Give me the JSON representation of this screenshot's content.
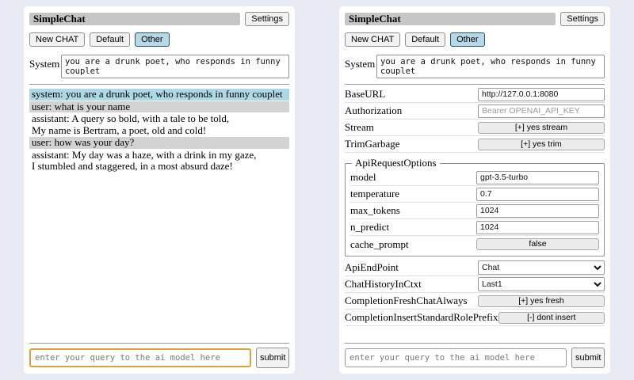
{
  "colors": {
    "page_bg": "#e8ebf4",
    "titlebar_bg": "#c6c6c6",
    "selected_session_bg": "#b7d8e6",
    "system_msg_bg": "#add8e6",
    "user_msg_bg": "#d3d3d3",
    "active_query_border": "#d9a43b"
  },
  "header": {
    "title": "SimpleChat",
    "settings_button": "Settings",
    "sessions": {
      "new_chat": "New CHAT",
      "default": "Default",
      "other": "Other"
    },
    "system_label": "System",
    "system_prompt": "you are a drunk poet, who responds in funny couplet"
  },
  "chat": {
    "messages": [
      {
        "role": "system",
        "text": "system: you are a drunk poet, who responds in funny couplet"
      },
      {
        "role": "user",
        "text": "user: what is your name"
      },
      {
        "role": "assistant",
        "text": "assistant: A query so bold, with a tale to be told,\nMy name is Bertram, a poet, old and cold!"
      },
      {
        "role": "user",
        "text": "user: how was your day?"
      },
      {
        "role": "assistant",
        "text": "assistant: My day was a haze, with a drink in my gaze,\nI stumbled and staggered, in a most absurd daze!"
      }
    ]
  },
  "settings": {
    "base_url": {
      "label": "BaseURL",
      "value": "http://127.0.0.1:8080"
    },
    "authorization": {
      "label": "Authorization",
      "placeholder": "Bearer OPENAI_API_KEY"
    },
    "stream": {
      "label": "Stream",
      "button": "[+] yes stream"
    },
    "trim_garbage": {
      "label": "TrimGarbage",
      "button": "[+] yes trim"
    },
    "api_request_options": {
      "legend": "ApiRequestOptions",
      "model": {
        "label": "model",
        "value": "gpt-3.5-turbo"
      },
      "temperature": {
        "label": "temperature",
        "value": "0.7"
      },
      "max_tokens": {
        "label": "max_tokens",
        "value": "1024"
      },
      "n_predict": {
        "label": "n_predict",
        "value": "1024"
      },
      "cache_prompt": {
        "label": "cache_prompt",
        "button": "false"
      }
    },
    "api_endpoint": {
      "label": "ApiEndPoint",
      "value": "Chat"
    },
    "chat_history_in_ctxt": {
      "label": "ChatHistoryInCtxt",
      "value": "Last1"
    },
    "completion_fresh_chat_always": {
      "label": "CompletionFreshChatAlways",
      "button": "[+] yes fresh"
    },
    "completion_insert_standard_role_prefix": {
      "label": "CompletionInsertStandardRolePrefix",
      "button": "[-] dont insert"
    }
  },
  "query": {
    "placeholder": "enter your query to the ai model here",
    "submit_label": "submit"
  }
}
